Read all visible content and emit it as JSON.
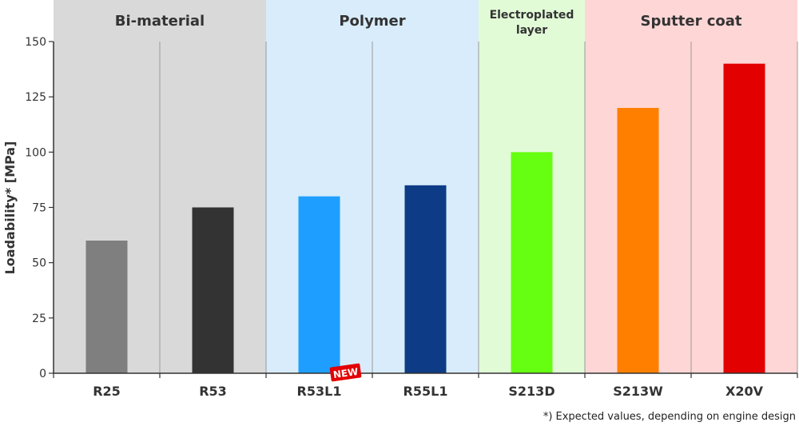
{
  "chart_data": {
    "type": "bar",
    "title": "",
    "xlabel": "",
    "ylabel": "Loadability* [MPa]",
    "ylim": [
      0,
      150
    ],
    "yticks": [
      0,
      25,
      50,
      75,
      100,
      125,
      150
    ],
    "grid": "vertical separators between categories",
    "categories": [
      "R25",
      "R53",
      "R53L1",
      "R55L1",
      "S213D",
      "S213W",
      "X20V"
    ],
    "values": [
      60,
      75,
      80,
      85,
      100,
      120,
      140
    ],
    "bar_colors": [
      "#7f7f7f",
      "#333333",
      "#1e9fff",
      "#0d3b85",
      "#66ff11",
      "#ff8000",
      "#e30000"
    ],
    "groups": [
      {
        "name": "Bi-material",
        "categories": [
          "R25",
          "R53"
        ],
        "color": "#d9d9d9"
      },
      {
        "name": "Polymer",
        "categories": [
          "R53L1",
          "R55L1"
        ],
        "color": "#d8ecfb"
      },
      {
        "name_lines": [
          "Electroplated",
          "layer"
        ],
        "categories": [
          "S213D"
        ],
        "color": "#e2fbd7"
      },
      {
        "name": "Sputter coat",
        "categories": [
          "S213W",
          "X20V"
        ],
        "color": "#ffd6d6"
      }
    ],
    "badge": {
      "text": "NEW",
      "category": "R53L1",
      "color": "#e30000"
    },
    "footnote": "*) Expected values, depending on engine design"
  }
}
